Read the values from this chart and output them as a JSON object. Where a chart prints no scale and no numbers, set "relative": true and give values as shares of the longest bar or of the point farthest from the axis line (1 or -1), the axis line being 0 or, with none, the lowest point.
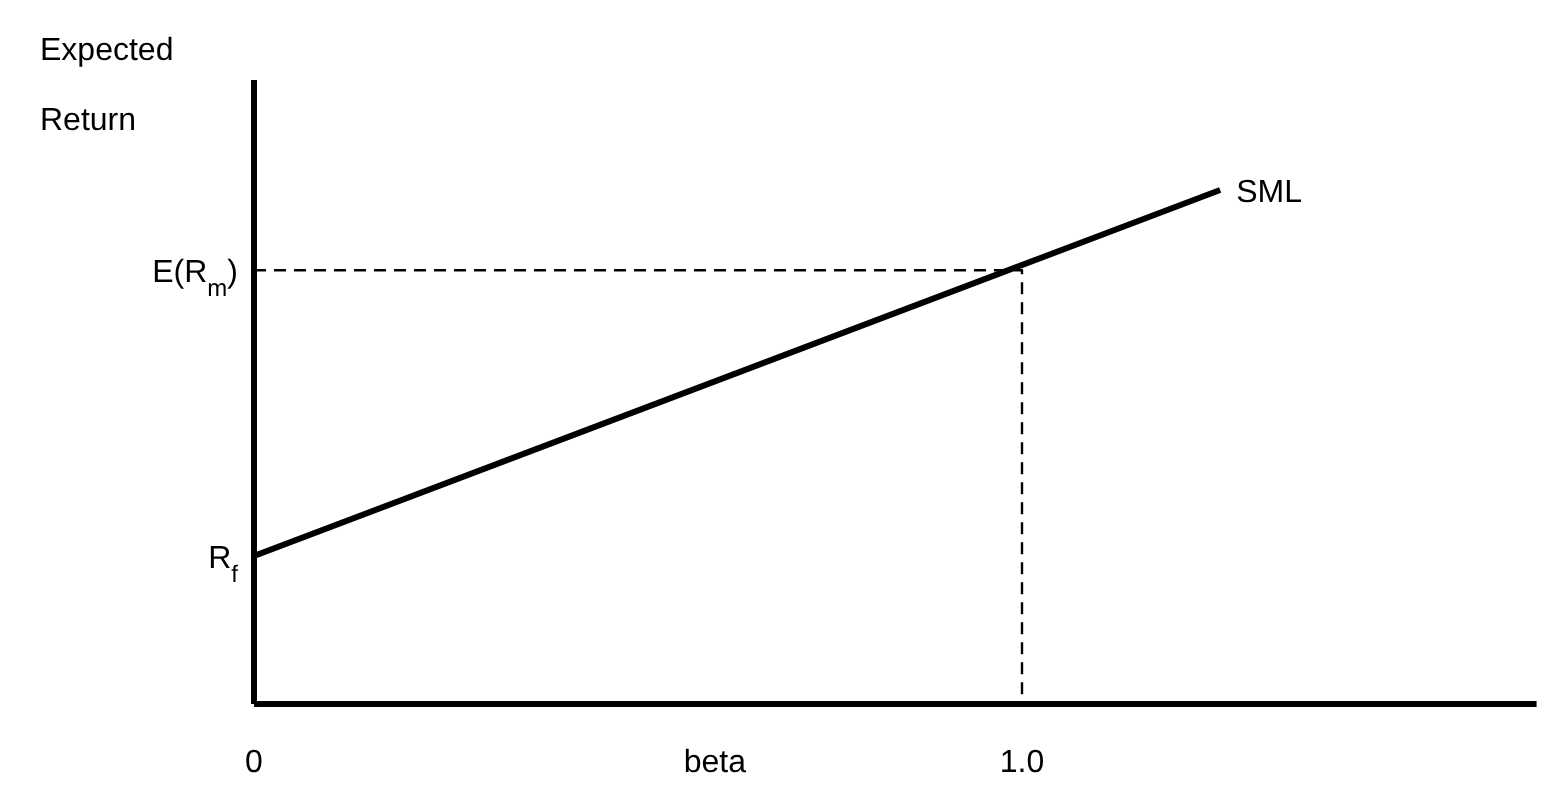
{
  "chart_data": {
    "type": "line",
    "relative": true,
    "ylabel": "Expected Return",
    "xlabel": "beta",
    "xlim": [
      0,
      1.67
    ],
    "xticks": [
      0,
      {
        "value": 1,
        "label": "1.0"
      }
    ],
    "series": [
      {
        "name": "SML",
        "color": "#000000",
        "x": [
          0,
          1.258
        ],
        "values": [
          0.288,
          1
        ]
      },
      {
        "color": "#000000",
        "line_style": "dashed",
        "x": [
          0,
          1,
          1
        ],
        "values": [
          0.844,
          0.844,
          0
        ]
      }
    ],
    "annotations": [
      "R$_{f}$",
      "E(R$_{m}$)"
    ],
    "legend": false,
    "marker": "none",
    "line_style": "solid"
  }
}
